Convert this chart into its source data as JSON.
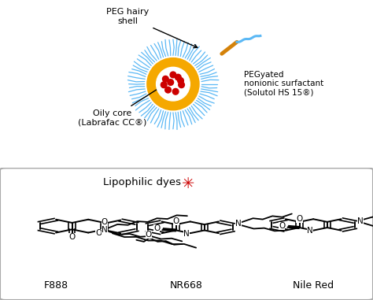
{
  "fig_width": 4.74,
  "fig_height": 3.81,
  "dpi": 100,
  "bg_color": "#ffffff",
  "droplet_core_color": "#F5A800",
  "droplet_shell_color": "#5BB8F5",
  "droplet_red_dot_color": "#CC0000",
  "text_color": "#000000",
  "star_color": "#CC0000",
  "surfactant_orange_color": "#D4820A",
  "surfactant_blue_color": "#5BB8F5",
  "peg_hairy_shell_label": "PEG hairy\nshell",
  "oily_core_label": "Oily core\n(Labrafac CC®)",
  "pegyated_label": "PEGyated\nnonionic surfactant\n(Solutol HS 15®)",
  "lipophilic_label": "Lipophilic dyes",
  "f888_label": "F888",
  "nr668_label": "NR668",
  "nile_red_label": "Nile Red"
}
